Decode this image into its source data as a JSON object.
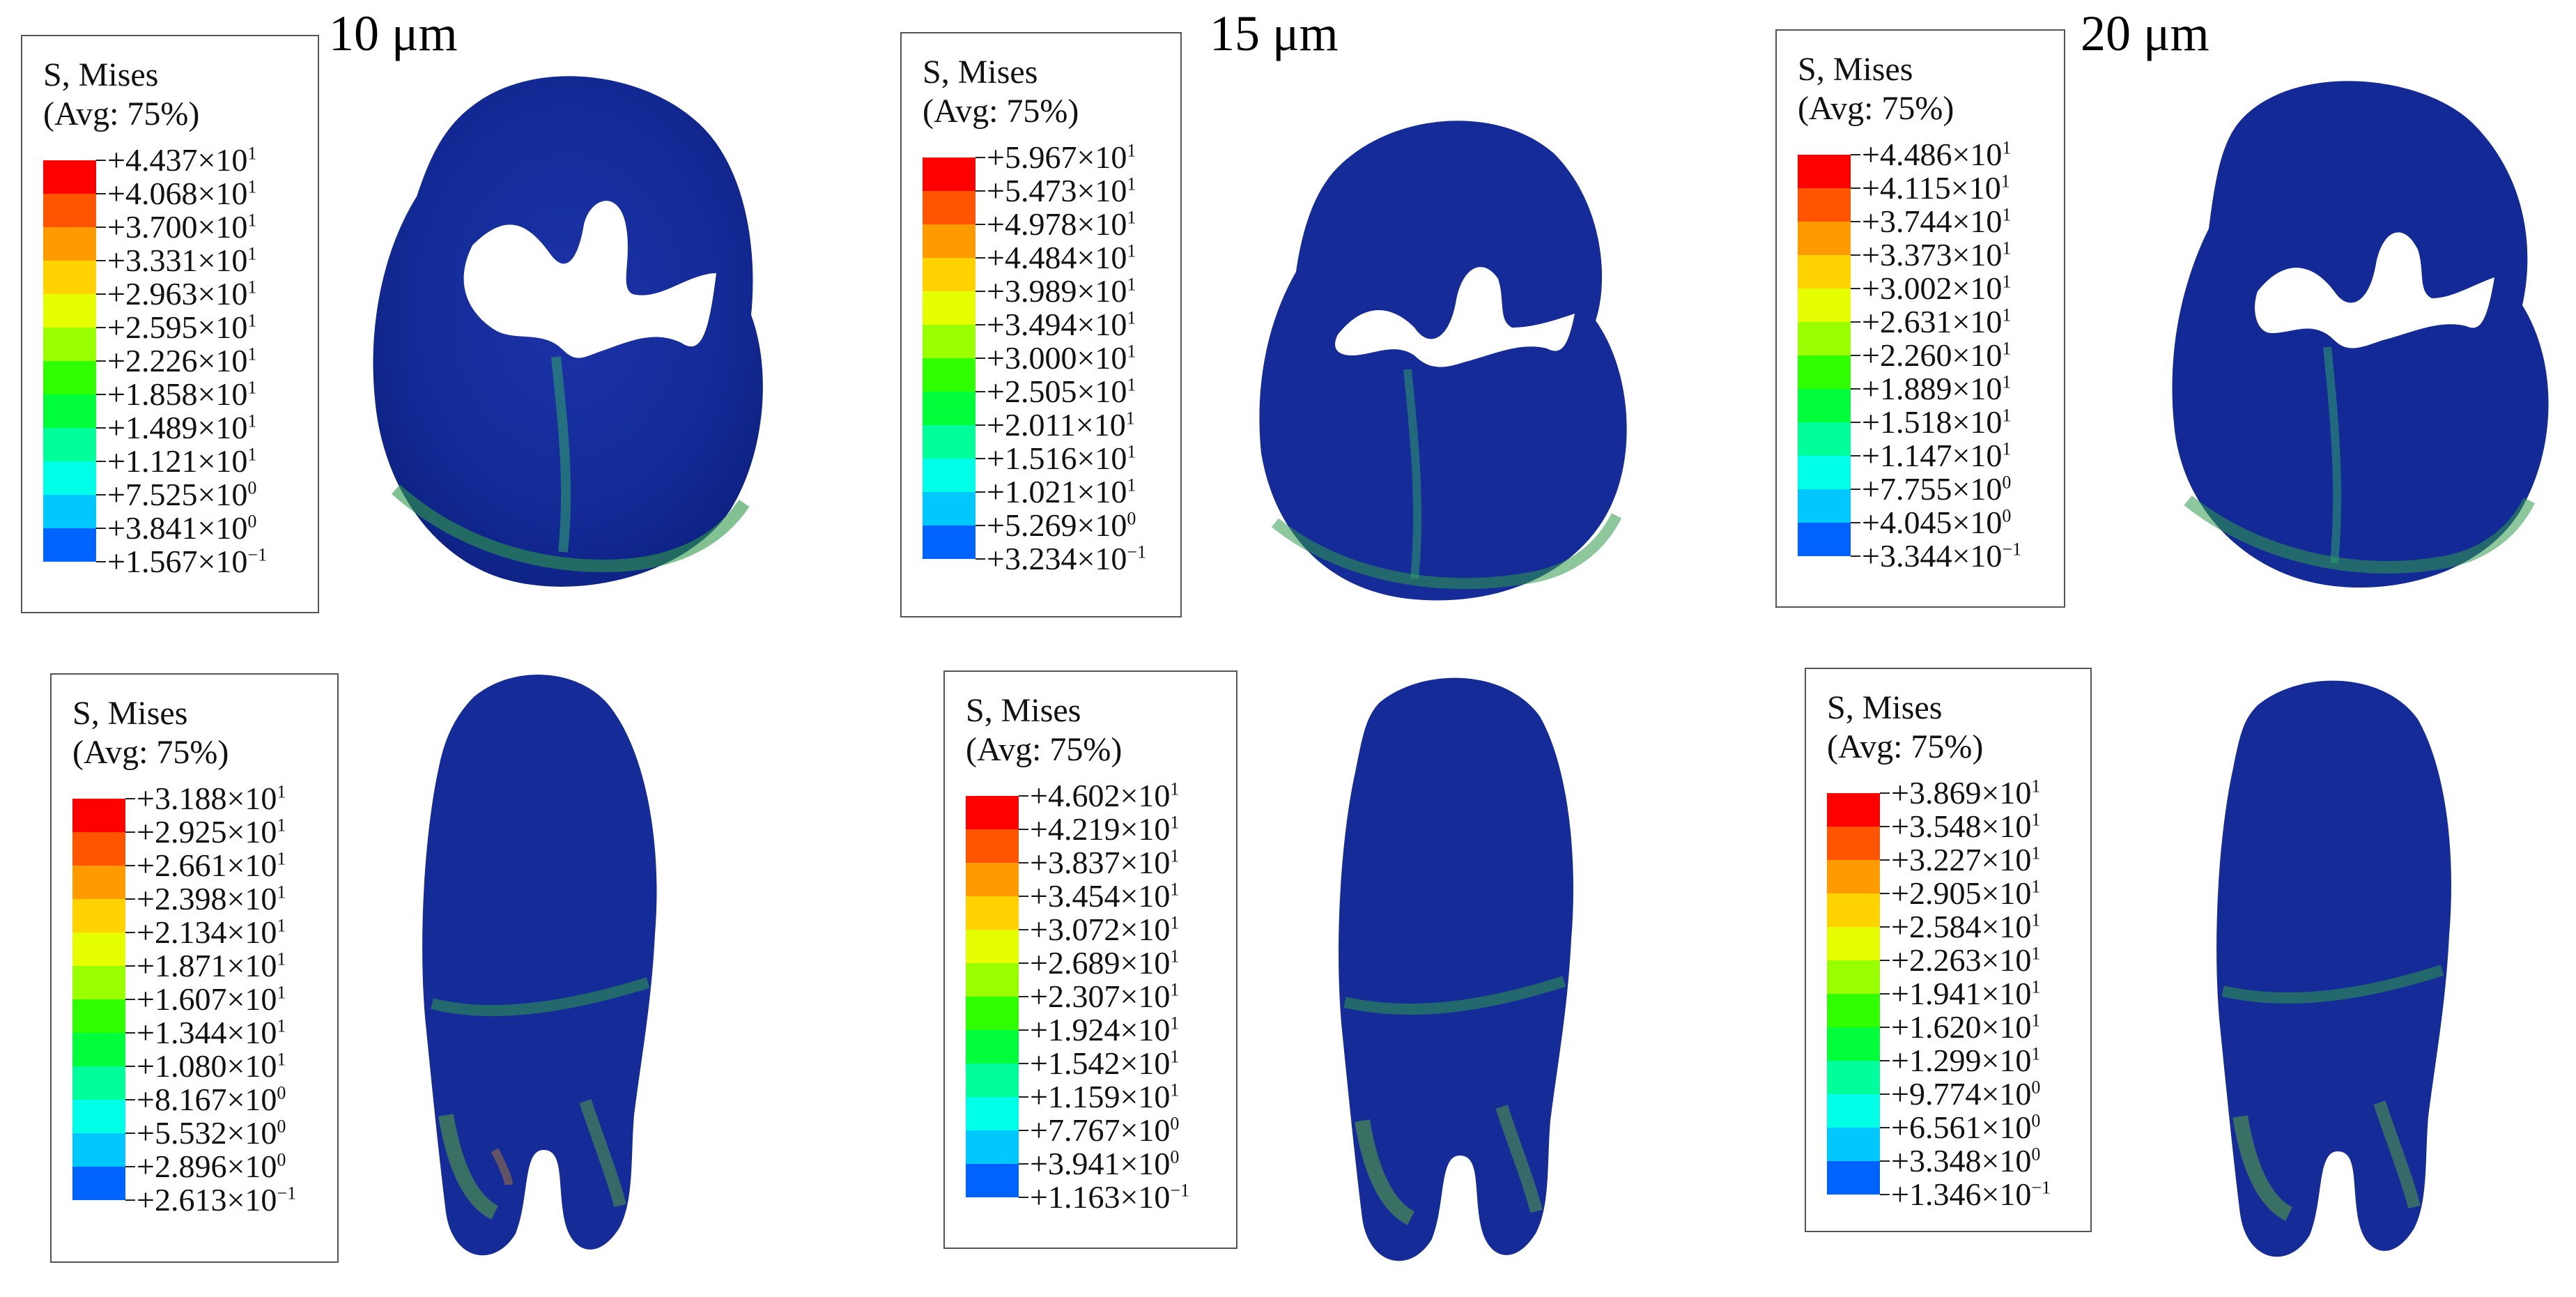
{
  "columns": [
    {
      "title": "10 μm"
    },
    {
      "title": "15 μm"
    },
    {
      "title": "20 μm"
    }
  ],
  "legend_title_line1": "S, Mises",
  "legend_title_line2": "(Avg: 75%)",
  "contour_colors": [
    "#ff0000",
    "#ff5500",
    "#ff9a00",
    "#ffd200",
    "#e6ff00",
    "#9aff00",
    "#2fff00",
    "#00ff3a",
    "#00ff9a",
    "#00ffe6",
    "#00c8ff",
    "#0063ff",
    "#0000ff"
  ],
  "legends": [
    {
      "position": "top-left",
      "values": [
        {
          "m": "+4.437",
          "e": "1"
        },
        {
          "m": "+4.068",
          "e": "1"
        },
        {
          "m": "+3.700",
          "e": "1"
        },
        {
          "m": "+3.331",
          "e": "1"
        },
        {
          "m": "+2.963",
          "e": "1"
        },
        {
          "m": "+2.595",
          "e": "1"
        },
        {
          "m": "+2.226",
          "e": "1"
        },
        {
          "m": "+1.858",
          "e": "1"
        },
        {
          "m": "+1.489",
          "e": "1"
        },
        {
          "m": "+1.121",
          "e": "1"
        },
        {
          "m": "+7.525",
          "e": "0"
        },
        {
          "m": "+3.841",
          "e": "0"
        },
        {
          "m": "+1.567",
          "e": "−1"
        }
      ]
    },
    {
      "position": "top-middle",
      "values": [
        {
          "m": "+5.967",
          "e": "1"
        },
        {
          "m": "+5.473",
          "e": "1"
        },
        {
          "m": "+4.978",
          "e": "1"
        },
        {
          "m": "+4.484",
          "e": "1"
        },
        {
          "m": "+3.989",
          "e": "1"
        },
        {
          "m": "+3.494",
          "e": "1"
        },
        {
          "m": "+3.000",
          "e": "1"
        },
        {
          "m": "+2.505",
          "e": "1"
        },
        {
          "m": "+2.011",
          "e": "1"
        },
        {
          "m": "+1.516",
          "e": "1"
        },
        {
          "m": "+1.021",
          "e": "1"
        },
        {
          "m": "+5.269",
          "e": "0"
        },
        {
          "m": "+3.234",
          "e": "−1"
        }
      ]
    },
    {
      "position": "top-right",
      "values": [
        {
          "m": "+4.486",
          "e": "1"
        },
        {
          "m": "+4.115",
          "e": "1"
        },
        {
          "m": "+3.744",
          "e": "1"
        },
        {
          "m": "+3.373",
          "e": "1"
        },
        {
          "m": "+3.002",
          "e": "1"
        },
        {
          "m": "+2.631",
          "e": "1"
        },
        {
          "m": "+2.260",
          "e": "1"
        },
        {
          "m": "+1.889",
          "e": "1"
        },
        {
          "m": "+1.518",
          "e": "1"
        },
        {
          "m": "+1.147",
          "e": "1"
        },
        {
          "m": "+7.755",
          "e": "0"
        },
        {
          "m": "+4.045",
          "e": "0"
        },
        {
          "m": "+3.344",
          "e": "−1"
        }
      ]
    },
    {
      "position": "bottom-left",
      "values": [
        {
          "m": "+3.188",
          "e": "1"
        },
        {
          "m": "+2.925",
          "e": "1"
        },
        {
          "m": "+2.661",
          "e": "1"
        },
        {
          "m": "+2.398",
          "e": "1"
        },
        {
          "m": "+2.134",
          "e": "1"
        },
        {
          "m": "+1.871",
          "e": "1"
        },
        {
          "m": "+1.607",
          "e": "1"
        },
        {
          "m": "+1.344",
          "e": "1"
        },
        {
          "m": "+1.080",
          "e": "1"
        },
        {
          "m": "+8.167",
          "e": "0"
        },
        {
          "m": "+5.532",
          "e": "0"
        },
        {
          "m": "+2.896",
          "e": "0"
        },
        {
          "m": "+2.613",
          "e": "−1"
        }
      ]
    },
    {
      "position": "bottom-middle",
      "values": [
        {
          "m": "+4.602",
          "e": "1"
        },
        {
          "m": "+4.219",
          "e": "1"
        },
        {
          "m": "+3.837",
          "e": "1"
        },
        {
          "m": "+3.454",
          "e": "1"
        },
        {
          "m": "+3.072",
          "e": "1"
        },
        {
          "m": "+2.689",
          "e": "1"
        },
        {
          "m": "+2.307",
          "e": "1"
        },
        {
          "m": "+1.924",
          "e": "1"
        },
        {
          "m": "+1.542",
          "e": "1"
        },
        {
          "m": "+1.159",
          "e": "1"
        },
        {
          "m": "+7.767",
          "e": "0"
        },
        {
          "m": "+3.941",
          "e": "0"
        },
        {
          "m": "+1.163",
          "e": "−1"
        }
      ]
    },
    {
      "position": "bottom-right",
      "values": [
        {
          "m": "+3.869",
          "e": "1"
        },
        {
          "m": "+3.548",
          "e": "1"
        },
        {
          "m": "+3.227",
          "e": "1"
        },
        {
          "m": "+2.905",
          "e": "1"
        },
        {
          "m": "+2.584",
          "e": "1"
        },
        {
          "m": "+2.263",
          "e": "1"
        },
        {
          "m": "+1.941",
          "e": "1"
        },
        {
          "m": "+1.620",
          "e": "1"
        },
        {
          "m": "+1.299",
          "e": "1"
        },
        {
          "m": "+9.774",
          "e": "0"
        },
        {
          "m": "+6.561",
          "e": "0"
        },
        {
          "m": "+3.348",
          "e": "0"
        },
        {
          "m": "+1.346",
          "e": "−1"
        }
      ]
    }
  ]
}
